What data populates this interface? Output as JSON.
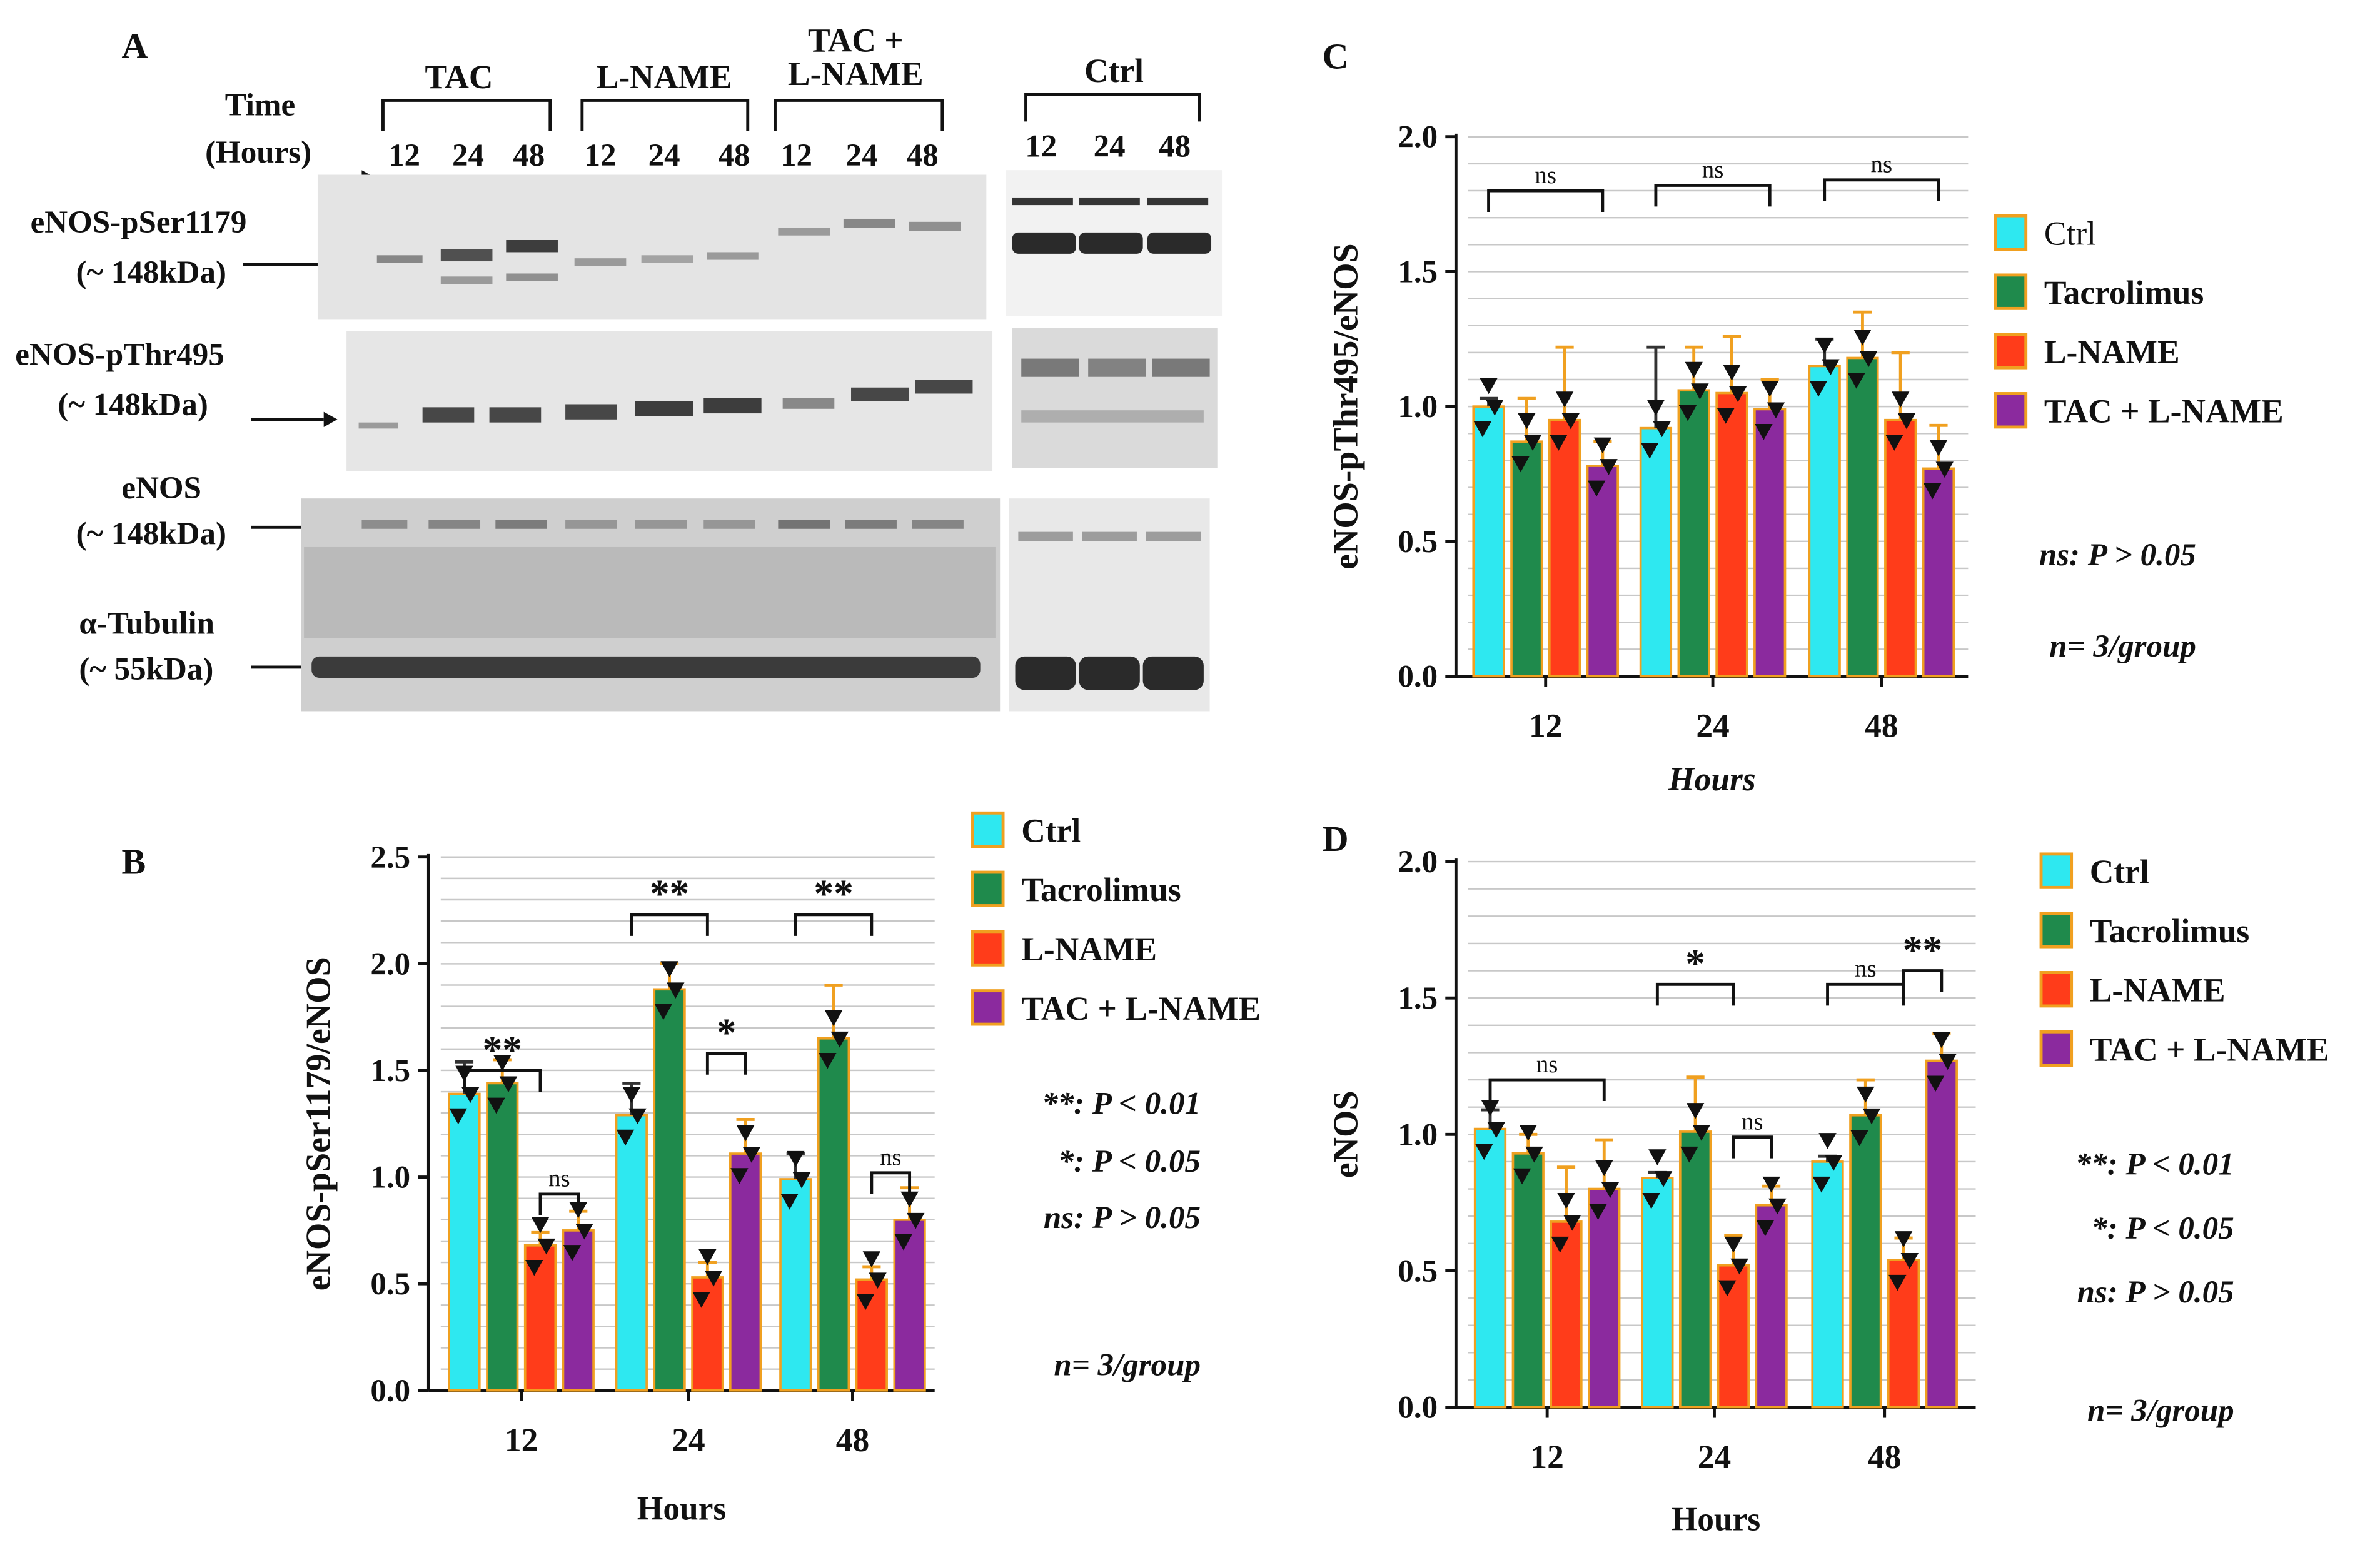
{
  "colors": {
    "Ctrl": "#2ee8f0",
    "Tacrolimus": "#1f8a4c",
    "L-NAME": "#ff3c1a",
    "TAC + L-NAME": "#8b2a9e",
    "error": "#f0a020",
    "grid": "#c8c8c8",
    "band": "#1b1b1b",
    "blot_bg": "#e2e2e2"
  },
  "panelA": {
    "letter": "A",
    "time_label": [
      "Time",
      "(Hours)"
    ],
    "groups": [
      {
        "label": [
          "TAC"
        ],
        "hours": [
          "12",
          "24",
          "48"
        ]
      },
      {
        "label": [
          "L-NAME"
        ],
        "hours": [
          "12",
          "24",
          "48"
        ]
      },
      {
        "label": [
          "TAC +",
          "L-NAME"
        ],
        "hours": [
          "12",
          "24",
          "48"
        ]
      },
      {
        "label": [
          "Ctrl"
        ],
        "hours": [
          "12",
          "24",
          "48"
        ]
      }
    ],
    "rows": [
      {
        "name": [
          "eNOS-pSer1179",
          "(~ 148kDa)"
        ]
      },
      {
        "name": [
          "eNOS-pThr495",
          "(~ 148kDa)"
        ]
      },
      {
        "name": [
          "eNOS",
          "(~ 148kDa)"
        ]
      },
      {
        "name": [
          "α-Tubulin",
          "(~ 55kDa)"
        ]
      }
    ]
  },
  "chart_data": [
    {
      "panel": "B",
      "type": "bar",
      "ylabel": "eNOS-pSer1179/eNOS",
      "xlabel": "Hours",
      "categories": [
        "12",
        "24",
        "48"
      ],
      "ylim": [
        0,
        2.5
      ],
      "yticks": [
        "0.0",
        "0.5",
        "1.0",
        "1.5",
        "2.0",
        "2.5"
      ],
      "grid": true,
      "legend_placement": "right",
      "series": [
        {
          "name": "Ctrl",
          "values": [
            1.39,
            1.29,
            0.99
          ],
          "errors": [
            0.15,
            0.15,
            0.12
          ]
        },
        {
          "name": "Tacrolimus",
          "values": [
            1.44,
            1.88,
            1.65
          ],
          "errors": [
            0.11,
            0.12,
            0.25
          ]
        },
        {
          "name": "L-NAME",
          "values": [
            0.68,
            0.53,
            0.52
          ],
          "errors": [
            0.06,
            0.07,
            0.06
          ]
        },
        {
          "name": "TAC + L-NAME",
          "values": [
            0.75,
            1.11,
            0.8
          ],
          "errors": [
            0.09,
            0.16,
            0.15
          ]
        }
      ],
      "significance": [
        {
          "text": "**",
          "cat": 0,
          "from": 0,
          "to": 2,
          "y": 1.5
        },
        {
          "text": "ns",
          "cat": 0,
          "from": 2,
          "to": 3,
          "y": 0.92
        },
        {
          "text": "**",
          "cat": 1,
          "from": 0,
          "to": 2,
          "y": 2.23
        },
        {
          "text": "*",
          "cat": 1,
          "from": 2,
          "to": 3,
          "y": 1.58
        },
        {
          "text": "**",
          "cat": 2,
          "from": 0,
          "to": 2,
          "y": 2.23
        },
        {
          "text": "ns",
          "cat": 2,
          "from": 2,
          "to": 3,
          "y": 1.02
        }
      ],
      "notes": [
        "**: P < 0.01",
        "*: P < 0.05",
        "ns: P > 0.05",
        "n= 3/group"
      ]
    },
    {
      "panel": "C",
      "type": "bar",
      "ylabel": "eNOS-pThr495/eNOS",
      "xlabel": "Hours",
      "categories": [
        "12",
        "24",
        "48"
      ],
      "ylim": [
        0,
        2.0
      ],
      "yticks": [
        "0.0",
        "0.5",
        "1.0",
        "1.5",
        "2.0"
      ],
      "grid": true,
      "legend_placement": "right",
      "series": [
        {
          "name": "Ctrl",
          "values": [
            1.0,
            0.92,
            1.15
          ],
          "errors": [
            0.03,
            0.3,
            0.1
          ]
        },
        {
          "name": "Tacrolimus",
          "values": [
            0.87,
            1.06,
            1.18
          ],
          "errors": [
            0.16,
            0.16,
            0.17
          ]
        },
        {
          "name": "L-NAME",
          "values": [
            0.95,
            1.05,
            0.95
          ],
          "errors": [
            0.27,
            0.21,
            0.25
          ]
        },
        {
          "name": "TAC + L-NAME",
          "values": [
            0.78,
            0.99,
            0.77
          ],
          "errors": [
            0.09,
            0.11,
            0.16
          ]
        }
      ],
      "significance": [
        {
          "text": "ns",
          "cat": 0,
          "from": 0,
          "to": 3,
          "y": 1.8
        },
        {
          "text": "ns",
          "cat": 1,
          "from": 0,
          "to": 3,
          "y": 1.82
        },
        {
          "text": "ns",
          "cat": 2,
          "from": 0,
          "to": 3,
          "y": 1.84
        }
      ],
      "notes": [
        "ns: P > 0.05",
        "n= 3/group"
      ]
    },
    {
      "panel": "D",
      "type": "bar",
      "ylabel": "eNOS",
      "xlabel": "Hours",
      "categories": [
        "12",
        "24",
        "48"
      ],
      "ylim": [
        0,
        2.0
      ],
      "yticks": [
        "0.0",
        "0.5",
        "1.0",
        "1.5",
        "2.0"
      ],
      "grid": true,
      "legend_placement": "right",
      "series": [
        {
          "name": "Ctrl",
          "values": [
            1.02,
            0.84,
            0.9
          ],
          "errors": [
            0.07,
            0.02,
            0.02
          ]
        },
        {
          "name": "Tacrolimus",
          "values": [
            0.93,
            1.01,
            1.07
          ],
          "errors": [
            0.07,
            0.2,
            0.13
          ]
        },
        {
          "name": "L-NAME",
          "values": [
            0.68,
            0.52,
            0.54
          ],
          "errors": [
            0.2,
            0.11,
            0.08
          ]
        },
        {
          "name": "TAC + L-NAME",
          "values": [
            0.8,
            0.74,
            1.27
          ],
          "errors": [
            0.18,
            0.07,
            0.1
          ]
        }
      ],
      "significance": [
        {
          "text": "ns",
          "cat": 0,
          "from": 0,
          "to": 3,
          "y": 1.2
        },
        {
          "text": "*",
          "cat": 1,
          "from": 0,
          "to": 2,
          "y": 1.55
        },
        {
          "text": "ns",
          "cat": 1,
          "from": 2,
          "to": 3,
          "y": 0.99
        },
        {
          "text": "ns",
          "cat": 2,
          "from": 0,
          "to": 2,
          "y": 1.55
        },
        {
          "text": "**",
          "cat": 2,
          "from": 2,
          "to": 3,
          "y": 1.6
        }
      ],
      "notes": [
        "**: P < 0.01",
        "*: P < 0.05",
        "ns: P > 0.05",
        "n= 3/group"
      ]
    }
  ]
}
